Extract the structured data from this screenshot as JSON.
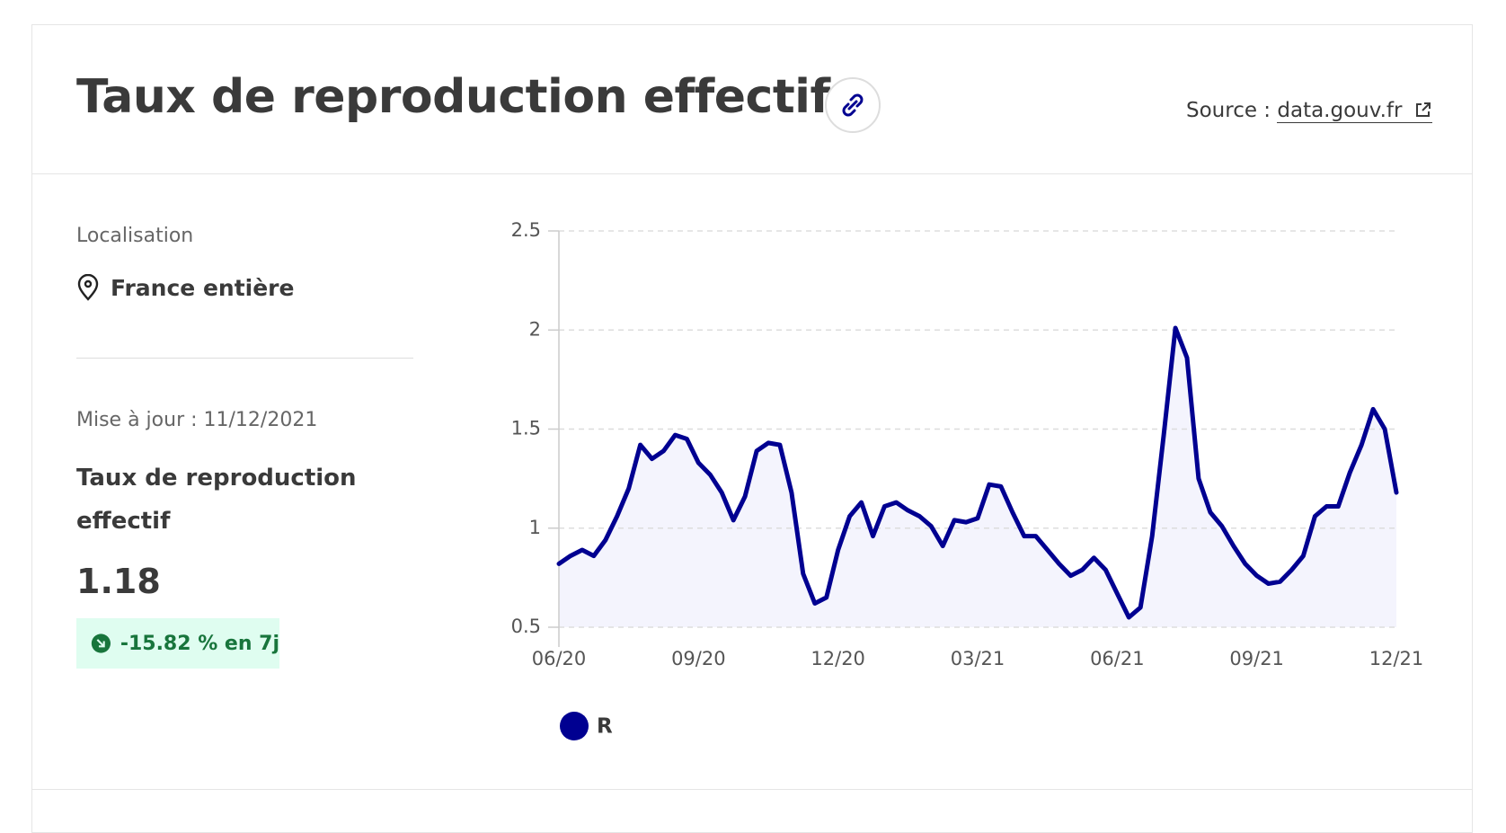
{
  "header": {
    "title": "Taux de reproduction effectif",
    "source_label": "Source :",
    "source_link": "data.gouv.fr"
  },
  "sidebar": {
    "location_label": "Localisation",
    "location": "France entière",
    "update": "Mise à jour : 11/12/2021",
    "metric_label": "Taux de reproduction effectif",
    "metric_value": 1.18,
    "change": "-15.82 % en 7j"
  },
  "chart_data": {
    "type": "line",
    "categories": [
      "06/20",
      null,
      null,
      null,
      null,
      null,
      null,
      null,
      null,
      null,
      null,
      null,
      "09/20",
      null,
      null,
      null,
      null,
      null,
      null,
      null,
      null,
      null,
      null,
      null,
      "12/20",
      null,
      null,
      null,
      null,
      null,
      null,
      null,
      null,
      null,
      null,
      null,
      "03/21",
      null,
      null,
      null,
      null,
      null,
      null,
      null,
      null,
      null,
      null,
      null,
      "06/21",
      null,
      null,
      null,
      null,
      null,
      null,
      null,
      null,
      null,
      null,
      null,
      "09/21",
      null,
      null,
      null,
      null,
      null,
      null,
      null,
      null,
      null,
      null,
      null,
      "12/21"
    ],
    "series": [
      {
        "name": "R",
        "color": "#000091",
        "area_color": "#f4f4fd",
        "values": [
          0.82,
          0.86,
          0.89,
          0.86,
          0.94,
          1.06,
          1.2,
          1.42,
          1.35,
          1.39,
          1.47,
          1.45,
          1.33,
          1.27,
          1.18,
          1.04,
          1.16,
          1.39,
          1.43,
          1.42,
          1.18,
          0.77,
          0.62,
          0.65,
          0.89,
          1.06,
          1.13,
          0.96,
          1.11,
          1.13,
          1.09,
          1.06,
          1.01,
          0.91,
          1.04,
          1.03,
          1.05,
          1.22,
          1.21,
          1.08,
          0.96,
          0.96,
          0.89,
          0.82,
          0.76,
          0.79,
          0.85,
          0.79,
          0.67,
          0.55,
          0.6,
          0.96,
          1.47,
          2.01,
          1.86,
          1.25,
          1.08,
          1.01,
          0.91,
          0.82,
          0.76,
          0.72,
          0.73,
          0.79,
          0.86,
          1.06,
          1.11,
          1.11,
          1.28,
          1.42,
          1.6,
          1.5,
          1.18
        ]
      }
    ],
    "ylim": [
      0.5,
      2.5
    ],
    "yticks": [
      0.5,
      1,
      1.5,
      2,
      2.5
    ],
    "grid": true
  }
}
